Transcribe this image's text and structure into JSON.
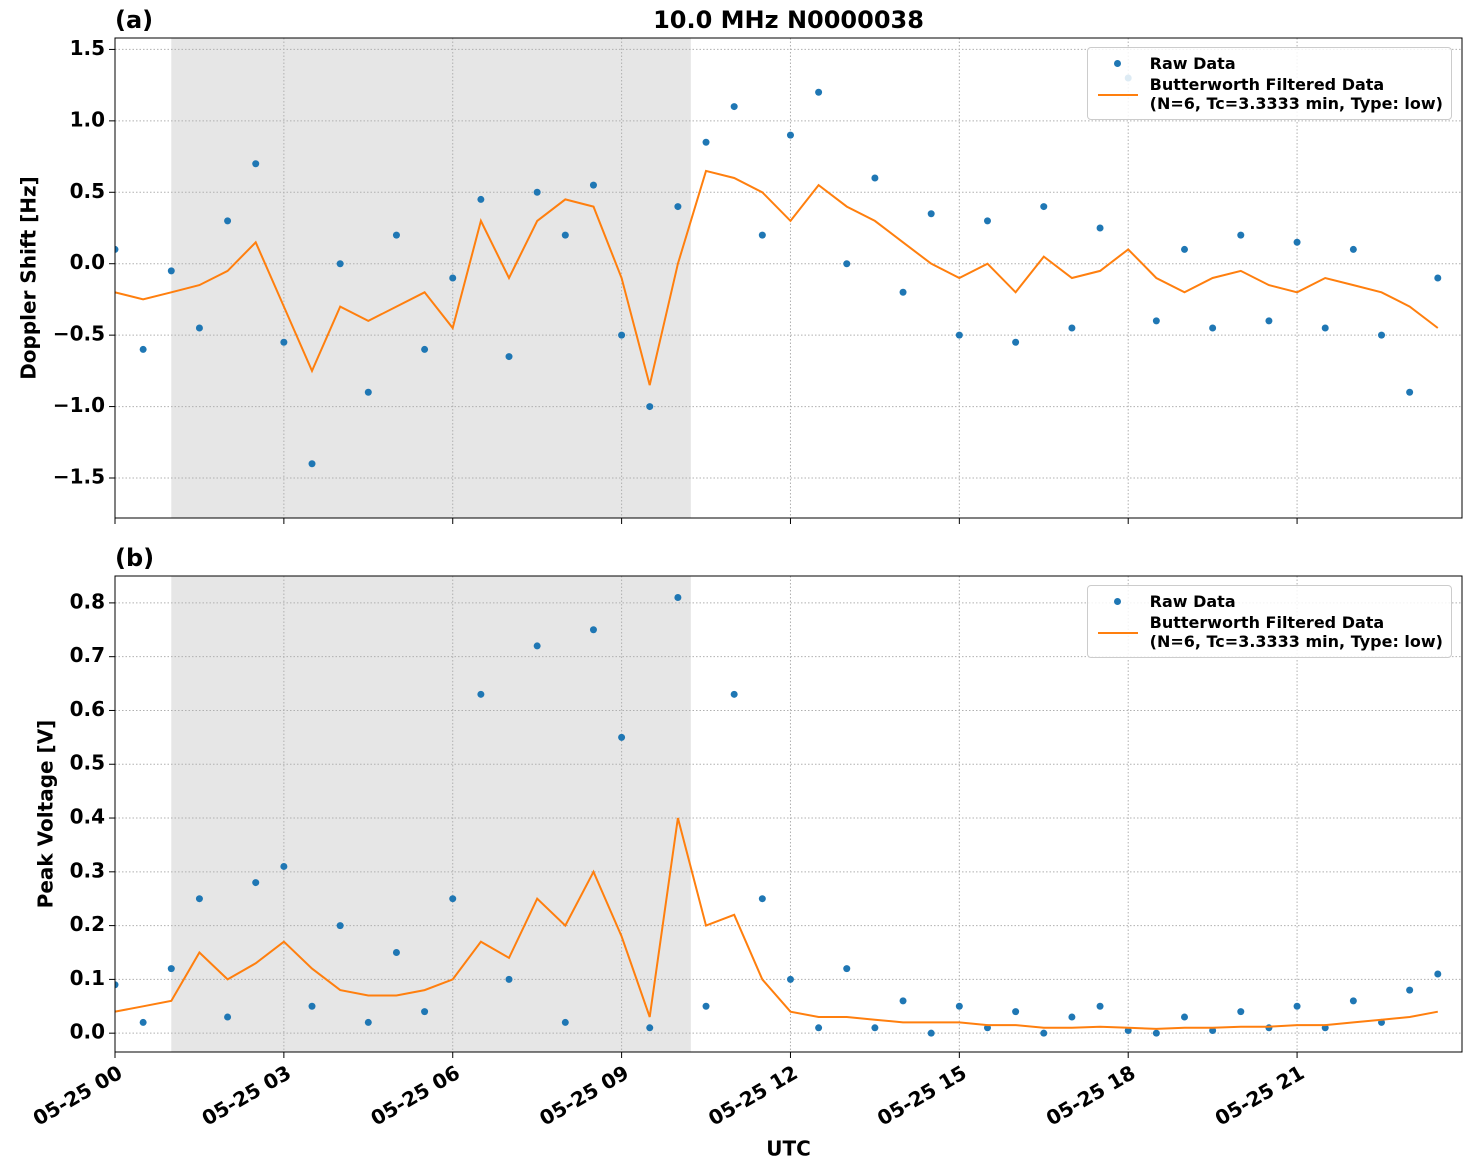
{
  "chart_data": [
    {
      "type": "line",
      "panel_label": "(a)",
      "title": "10.0 MHz N0000038",
      "ylabel": "Doppler Shift [Hz]",
      "xlim": [
        0,
        23.93
      ],
      "xticks": [
        0,
        3,
        6,
        9,
        12,
        15,
        18,
        21
      ],
      "ylim": [
        -1.78,
        1.58
      ],
      "yticks": [
        {
          "value": -1.5,
          "label": "−1.5"
        },
        {
          "value": -1.0,
          "label": "−1.0"
        },
        {
          "value": -0.5,
          "label": "−0.5"
        },
        {
          "value": 0,
          "label": "0.0"
        },
        0.5,
        {
          "value": 1.0,
          "label": "1.0"
        },
        1.5
      ],
      "grid": true,
      "legend": "upper right",
      "shade": [
        1.0,
        10.23
      ],
      "x": [
        0,
        0.5,
        1,
        1.5,
        2,
        2.5,
        3,
        3.5,
        4,
        4.5,
        5,
        5.5,
        6,
        6.5,
        7,
        7.5,
        8,
        8.5,
        9,
        9.5,
        10,
        10.5,
        11,
        11.5,
        12,
        12.5,
        13,
        13.5,
        14,
        14.5,
        15,
        15.5,
        16,
        16.5,
        17,
        17.5,
        18,
        18.5,
        19,
        19.5,
        20,
        20.5,
        21,
        21.5,
        22,
        22.5,
        23,
        23.5
      ],
      "series": [
        {
          "name": "Raw Data",
          "type": "scatter",
          "color": "#1f77b4",
          "values": [
            0.1,
            -0.6,
            -0.05,
            -0.45,
            0.3,
            0.7,
            -0.55,
            -1.4,
            0.0,
            -0.9,
            0.2,
            -0.6,
            -0.1,
            0.45,
            -0.65,
            0.5,
            0.2,
            0.55,
            -0.5,
            -1.0,
            0.4,
            0.85,
            1.1,
            0.2,
            0.9,
            1.2,
            0.0,
            0.6,
            -0.2,
            0.35,
            -0.5,
            0.3,
            -0.55,
            0.4,
            -0.45,
            0.25,
            1.3,
            -0.4,
            0.1,
            -0.45,
            0.2,
            -0.4,
            0.15,
            -0.45,
            0.1,
            -0.5,
            -0.9,
            -0.1
          ]
        },
        {
          "name": "Butterworth Filtered Data\n(N=6, Tc=3.3333 min, Type: low)",
          "type": "line",
          "color": "#ff7f0e",
          "values": [
            -0.2,
            -0.25,
            -0.2,
            -0.15,
            -0.05,
            0.15,
            -0.3,
            -0.75,
            -0.3,
            -0.4,
            -0.3,
            -0.2,
            -0.45,
            0.3,
            -0.1,
            0.3,
            0.45,
            0.4,
            -0.1,
            -0.85,
            0.0,
            0.65,
            0.6,
            0.5,
            0.3,
            0.55,
            0.4,
            0.3,
            0.15,
            0.0,
            -0.1,
            0.0,
            -0.2,
            0.05,
            -0.1,
            -0.05,
            0.1,
            -0.1,
            -0.2,
            -0.1,
            -0.05,
            -0.15,
            -0.2,
            -0.1,
            -0.15,
            -0.2,
            -0.3,
            -0.45
          ]
        }
      ]
    },
    {
      "type": "line",
      "panel_label": "(b)",
      "xlabel": "UTC",
      "ylabel": "Peak Voltage [V]",
      "xlim": [
        0,
        23.93
      ],
      "xticks": [
        {
          "value": 0,
          "label": "05-25 00"
        },
        {
          "value": 3,
          "label": "05-25 03"
        },
        {
          "value": 6,
          "label": "05-25 06"
        },
        {
          "value": 9,
          "label": "05-25 09"
        },
        {
          "value": 12,
          "label": "05-25 12"
        },
        {
          "value": 15,
          "label": "05-25 15"
        },
        {
          "value": 18,
          "label": "05-25 18"
        },
        {
          "value": 21,
          "label": "05-25 21"
        }
      ],
      "ylim": [
        -0.035,
        0.85
      ],
      "yticks": [
        {
          "value": 0,
          "label": "0.0"
        },
        0.1,
        0.2,
        0.3,
        0.4,
        0.5,
        0.6,
        0.7,
        0.8
      ],
      "grid": true,
      "legend": "upper right",
      "shade": [
        1.0,
        10.23
      ],
      "x": [
        0,
        0.5,
        1,
        1.5,
        2,
        2.5,
        3,
        3.5,
        4,
        4.5,
        5,
        5.5,
        6,
        6.5,
        7,
        7.5,
        8,
        8.5,
        9,
        9.5,
        10,
        10.5,
        11,
        11.5,
        12,
        12.5,
        13,
        13.5,
        14,
        14.5,
        15,
        15.5,
        16,
        16.5,
        17,
        17.5,
        18,
        18.5,
        19,
        19.5,
        20,
        20.5,
        21,
        21.5,
        22,
        22.5,
        23,
        23.5
      ],
      "series": [
        {
          "name": "Raw Data",
          "type": "scatter",
          "color": "#1f77b4",
          "values": [
            0.09,
            0.02,
            0.12,
            0.25,
            0.03,
            0.28,
            0.31,
            0.05,
            0.2,
            0.02,
            0.15,
            0.04,
            0.25,
            0.63,
            0.1,
            0.72,
            0.02,
            0.75,
            0.55,
            0.01,
            0.81,
            0.05,
            0.63,
            0.25,
            0.1,
            0.01,
            0.12,
            0.01,
            0.06,
            0.0,
            0.05,
            0.01,
            0.04,
            0.0,
            0.03,
            0.05,
            0.005,
            0.0,
            0.03,
            0.005,
            0.04,
            0.01,
            0.05,
            0.01,
            0.06,
            0.02,
            0.08,
            0.11
          ]
        },
        {
          "name": "Butterworth Filtered Data\n(N=6, Tc=3.3333 min, Type: low)",
          "type": "line",
          "color": "#ff7f0e",
          "values": [
            0.04,
            0.05,
            0.06,
            0.15,
            0.1,
            0.13,
            0.17,
            0.12,
            0.08,
            0.07,
            0.07,
            0.08,
            0.1,
            0.17,
            0.14,
            0.25,
            0.2,
            0.3,
            0.18,
            0.03,
            0.4,
            0.2,
            0.22,
            0.1,
            0.04,
            0.03,
            0.03,
            0.025,
            0.02,
            0.02,
            0.02,
            0.015,
            0.015,
            0.01,
            0.01,
            0.012,
            0.01,
            0.008,
            0.01,
            0.01,
            0.012,
            0.012,
            0.015,
            0.015,
            0.02,
            0.025,
            0.03,
            0.04
          ]
        }
      ]
    }
  ]
}
